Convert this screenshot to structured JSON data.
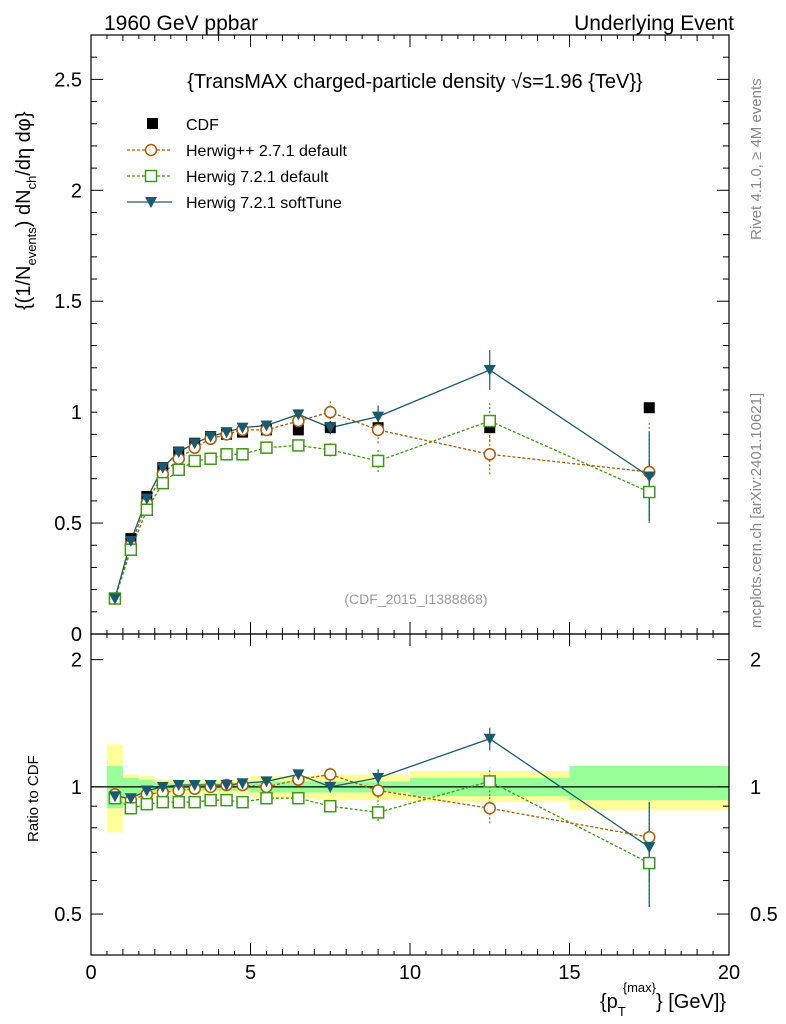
{
  "header": {
    "left": "1960 GeV ppbar",
    "right": "Underlying Event"
  },
  "side_text": {
    "rivet": "Rivet 4.1.0, ≥ 4M events",
    "mcplots": "mcplots.cern.ch [arXiv:2401.10621]"
  },
  "chart_data": {
    "type": "scatter",
    "title": "{TransMAX charged-particle density √s=1.96 {TeV}}",
    "analysis_label": "(CDF_2015_I1388868)",
    "ylabel": "{(1/N_events) dN_ch/dη dφ}",
    "ylabel_parts": {
      "a": "{(1/N",
      "b": "events",
      "c": ") dN",
      "d": "ch",
      "e": "/dη  dφ}"
    },
    "xlabel": "{p_T^{max}} [GeV]",
    "xlabel_parts": {
      "a": "{p",
      "b": "T",
      "c": "{max}",
      "d": "} [GeV]}"
    },
    "ratio_ylabel": "Ratio to CDF",
    "xlim": [
      0,
      20
    ],
    "ylim": [
      0,
      2.7
    ],
    "ratio_ylim": [
      0.4,
      2.3
    ],
    "x_ticks": [
      "0",
      "5",
      "10",
      "15",
      "20"
    ],
    "y_ticks": [
      "0",
      "0.5",
      "1",
      "1.5",
      "2",
      "2.5"
    ],
    "ratio_ticks": [
      "0.5",
      "1",
      "2"
    ],
    "legend": [
      "CDF",
      "Herwig++ 2.7.1 default",
      "Herwig 7.2.1 default",
      "Herwig 7.2.1 softTune"
    ],
    "x": [
      0.75,
      1.25,
      1.75,
      2.25,
      2.75,
      3.25,
      3.75,
      4.25,
      4.75,
      5.5,
      6.5,
      7.5,
      9.0,
      12.5,
      17.5
    ],
    "x_edges": [
      0.5,
      1.0,
      1.5,
      2.0,
      2.5,
      3.0,
      3.5,
      4.0,
      4.5,
      5.0,
      6.0,
      7.0,
      8.0,
      10.0,
      15.0,
      20.0
    ],
    "series": [
      {
        "name": "CDF",
        "marker": "square-filled",
        "color": "#000000",
        "values": [
          0.16,
          0.43,
          0.62,
          0.75,
          0.82,
          0.86,
          0.89,
          0.9,
          0.91,
          0.92,
          0.92,
          0.93,
          0.93,
          0.93,
          1.02
        ]
      },
      {
        "name": "Herwig++ 2.7.1 default",
        "marker": "circle-open",
        "color": "#b05a00",
        "dash": true,
        "values": [
          0.16,
          0.4,
          0.59,
          0.72,
          0.79,
          0.84,
          0.88,
          0.9,
          0.92,
          0.92,
          0.96,
          1.0,
          0.92,
          0.81,
          0.73
        ],
        "errors": [
          0.01,
          0.01,
          0.01,
          0.01,
          0.01,
          0.01,
          0.01,
          0.01,
          0.01,
          0.02,
          0.03,
          0.05,
          0.06,
          0.09,
          0.22
        ]
      },
      {
        "name": "Herwig 7.2.1 default",
        "marker": "square-open",
        "color": "#3c9a10",
        "dash": true,
        "values": [
          0.16,
          0.38,
          0.56,
          0.68,
          0.74,
          0.78,
          0.79,
          0.81,
          0.81,
          0.84,
          0.85,
          0.83,
          0.78,
          0.96,
          0.64
        ],
        "errors": [
          0.01,
          0.01,
          0.01,
          0.01,
          0.01,
          0.01,
          0.01,
          0.01,
          0.01,
          0.02,
          0.02,
          0.03,
          0.05,
          0.09,
          0.14
        ]
      },
      {
        "name": "Herwig 7.2.1 softTune",
        "marker": "triangle-down-filled",
        "color": "#1a5a70",
        "dash": false,
        "values": [
          0.16,
          0.42,
          0.61,
          0.75,
          0.82,
          0.86,
          0.89,
          0.91,
          0.93,
          0.94,
          0.99,
          0.93,
          0.98,
          1.19,
          0.71
        ],
        "errors": [
          0.01,
          0.01,
          0.01,
          0.01,
          0.01,
          0.01,
          0.01,
          0.01,
          0.01,
          0.02,
          0.02,
          0.03,
          0.05,
          0.09,
          0.2
        ]
      }
    ],
    "ratio_series": [
      {
        "name": "Herwig++ 2.7.1 default",
        "values": [
          0.96,
          0.93,
          0.96,
          0.97,
          0.98,
          0.99,
          1.0,
          1.01,
          1.01,
          1.0,
          1.04,
          1.07,
          0.98,
          0.89,
          0.76
        ],
        "errors": [
          0.01,
          0.01,
          0.01,
          0.01,
          0.01,
          0.01,
          0.01,
          0.01,
          0.01,
          0.02,
          0.03,
          0.04,
          0.06,
          0.07,
          0.16
        ]
      },
      {
        "name": "Herwig 7.2.1 default",
        "values": [
          0.94,
          0.89,
          0.91,
          0.92,
          0.92,
          0.92,
          0.93,
          0.93,
          0.92,
          0.94,
          0.94,
          0.9,
          0.87,
          1.03,
          0.66
        ],
        "errors": [
          0.01,
          0.01,
          0.01,
          0.01,
          0.01,
          0.01,
          0.01,
          0.01,
          0.01,
          0.02,
          0.02,
          0.03,
          0.04,
          0.08,
          0.14
        ]
      },
      {
        "name": "Herwig 7.2.1 softTune",
        "values": [
          0.95,
          0.94,
          0.98,
          1.0,
          1.01,
          1.01,
          1.01,
          1.01,
          1.02,
          1.03,
          1.07,
          1.0,
          1.05,
          1.3,
          0.72
        ],
        "errors": [
          0.01,
          0.01,
          0.01,
          0.01,
          0.01,
          0.01,
          0.01,
          0.01,
          0.01,
          0.02,
          0.02,
          0.03,
          0.05,
          0.08,
          0.2
        ]
      }
    ],
    "band_green": [
      [
        0.5,
        1.0,
        0.89,
        1.12
      ],
      [
        1.0,
        1.5,
        0.95,
        1.05
      ],
      [
        1.5,
        2.0,
        0.96,
        1.04
      ],
      [
        2.0,
        5.0,
        0.98,
        1.02
      ],
      [
        5.0,
        7.0,
        0.97,
        1.03
      ],
      [
        7.0,
        10.0,
        0.97,
        1.03
      ],
      [
        10.0,
        15.0,
        0.95,
        1.05
      ],
      [
        15.0,
        20.0,
        0.93,
        1.12
      ]
    ],
    "band_yellow": [
      [
        0.5,
        1.0,
        0.78,
        1.26
      ],
      [
        1.0,
        1.5,
        0.93,
        1.07
      ],
      [
        1.5,
        2.0,
        0.94,
        1.06
      ],
      [
        2.0,
        5.0,
        0.96,
        1.04
      ],
      [
        5.0,
        7.0,
        0.94,
        1.06
      ],
      [
        7.0,
        10.0,
        0.93,
        1.07
      ],
      [
        10.0,
        15.0,
        0.92,
        1.09
      ],
      [
        15.0,
        20.0,
        0.88,
        1.12
      ]
    ]
  }
}
